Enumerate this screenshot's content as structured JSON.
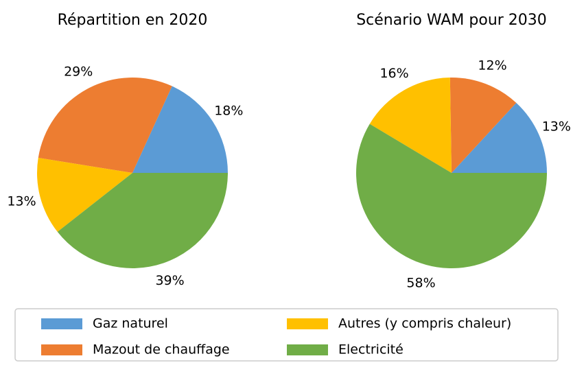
{
  "chart_data": [
    {
      "type": "pie",
      "title": "Répartition en 2020",
      "categories": [
        "Gaz naturel",
        "Mazout de chauffage",
        "Autres (y compris chaleur)",
        "Electricité"
      ],
      "values": [
        18,
        29,
        13,
        39
      ],
      "value_labels": [
        "18%",
        "29%",
        "13%",
        "39%"
      ],
      "colors": [
        "#5b9bd5",
        "#ed7d31",
        "#ffc000",
        "#70ad47"
      ]
    },
    {
      "type": "pie",
      "title": "Scénario WAM pour 2030",
      "categories": [
        "Gaz naturel",
        "Mazout de chauffage",
        "Autres (y compris chaleur)",
        "Electricité"
      ],
      "values": [
        13,
        12,
        16,
        58
      ],
      "value_labels": [
        "13%",
        "12%",
        "16%",
        "58%"
      ],
      "colors": [
        "#5b9bd5",
        "#ed7d31",
        "#ffc000",
        "#70ad47"
      ]
    }
  ]
}
